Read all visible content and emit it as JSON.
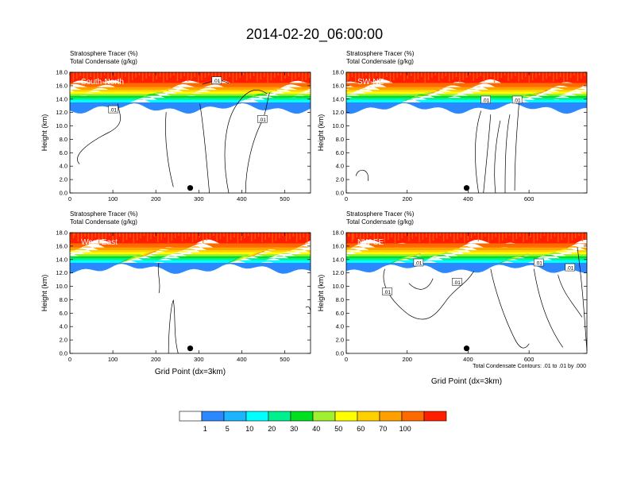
{
  "title": "2014-02-20_06:00:00",
  "footnote": "Total Condensate Contours: .01 to .01 by .000",
  "colorbar": {
    "colors": [
      "#ffffff",
      "#2b88ff",
      "#1bb4ff",
      "#00ffff",
      "#00f090",
      "#00e020",
      "#a0f030",
      "#ffff00",
      "#ffd000",
      "#ffa000",
      "#ff6a00",
      "#ff1e00"
    ],
    "labels": [
      "1",
      "5",
      "10",
      "20",
      "30",
      "40",
      "50",
      "60",
      "70",
      "100"
    ]
  },
  "chart_data": [
    {
      "type": "heatmap",
      "panel_label": "South-North",
      "header": [
        "Stratosphere Tracer   (%)",
        "Total Condensate   (g/kg)"
      ],
      "ylabel": "Height (km)",
      "xlabel": "",
      "ylim": [
        0,
        18
      ],
      "xlim": [
        0,
        560
      ],
      "yticks": [
        "0.0",
        "2.0",
        "4.0",
        "6.0",
        "8.0",
        "10.0",
        "12.0",
        "14.0",
        "16.0",
        "18.0"
      ],
      "xticks": [
        0,
        100,
        200,
        300,
        400,
        500
      ],
      "marker_x": 280,
      "contour_labels": [
        ".01",
        ".01",
        ".01"
      ]
    },
    {
      "type": "heatmap",
      "panel_label": "SW-NE",
      "header": [
        "Stratosphere Tracer   (%)",
        "Total Condensate   (g/kg)"
      ],
      "ylabel": "Height (km)",
      "xlabel": "",
      "ylim": [
        0,
        18
      ],
      "xlim": [
        0,
        790
      ],
      "yticks": [
        "0.0",
        "2.0",
        "4.0",
        "6.0",
        "8.0",
        "10.0",
        "12.0",
        "14.0",
        "16.0",
        "18.0"
      ],
      "xticks": [
        0,
        200,
        400,
        600
      ],
      "marker_x": 395,
      "contour_labels": [
        ".01",
        ".01"
      ]
    },
    {
      "type": "heatmap",
      "panel_label": "West-East",
      "header": [
        "Stratosphere Tracer   (%)",
        "Total Condensate   (g/kg)"
      ],
      "ylabel": "Height (km)",
      "xlabel": "Grid Point (dx=3km)",
      "ylim": [
        0,
        18
      ],
      "xlim": [
        0,
        560
      ],
      "yticks": [
        "0.0",
        "2.0",
        "4.0",
        "6.0",
        "8.0",
        "10.0",
        "12.0",
        "14.0",
        "16.0",
        "18.0"
      ],
      "xticks": [
        0,
        100,
        200,
        300,
        400,
        500
      ],
      "marker_x": 280,
      "contour_labels": []
    },
    {
      "type": "heatmap",
      "panel_label": "NW-SE",
      "header": [
        "Stratosphere Tracer   (%)",
        "Total Condensate   (g/kg)"
      ],
      "ylabel": "Height (km)",
      "xlabel": "Grid Point (dx=3km)",
      "ylim": [
        0,
        18
      ],
      "xlim": [
        0,
        790
      ],
      "yticks": [
        "0.0",
        "2.0",
        "4.0",
        "6.0",
        "8.0",
        "10.0",
        "12.0",
        "14.0",
        "16.0",
        "18.0"
      ],
      "xticks": [
        0,
        200,
        400,
        600
      ],
      "marker_x": 395,
      "contour_labels": [
        ".01",
        ".01",
        ".01",
        ".01",
        ".01"
      ]
    }
  ]
}
